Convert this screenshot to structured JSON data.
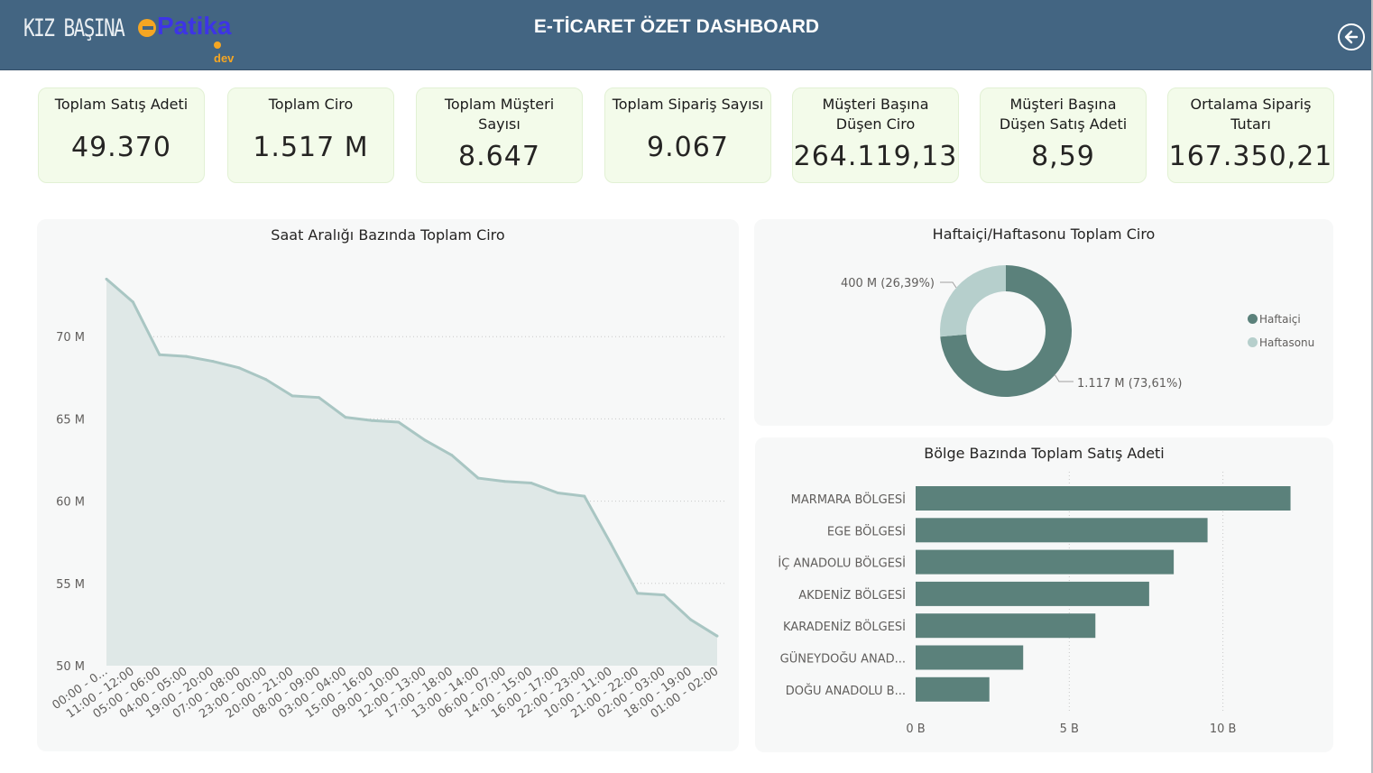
{
  "header": {
    "brand_kiz": "KIZ BAŞINA",
    "brand_patika": "Patika",
    "brand_dev": "dev",
    "title": "E-TİCARET ÖZET DASHBOARD",
    "back_icon": "back-arrow-icon"
  },
  "kpis": [
    {
      "label": "Toplam Satış Adeti",
      "value": "49.370"
    },
    {
      "label": "Toplam Ciro",
      "value": "1.517 M"
    },
    {
      "label": "Toplam Müşteri Sayısı",
      "value": "8.647"
    },
    {
      "label": "Toplam Sipariş Sayısı",
      "value": "9.067"
    },
    {
      "label": "Müşteri Başına Düşen Ciro",
      "value": "264.119,13"
    },
    {
      "label": "Müşteri Başına Düşen Satış Adeti",
      "value": "8,59"
    },
    {
      "label": "Ortalama Sipariş Tutarı",
      "value": "167.350,21"
    }
  ],
  "colors": {
    "header": "#436582",
    "card_bg": "#f3fbea",
    "area_fill": "#dfe8e7",
    "area_line": "#a9c6c3",
    "weekday": "#5b817b",
    "weekend": "#b6cfcc",
    "bar": "#5b817b"
  },
  "chart_data": [
    {
      "type": "area",
      "title": "Saat Aralığı Bazında Toplam Ciro",
      "ylim": [
        50,
        75
      ],
      "yticks": [
        "50 M",
        "55 M",
        "60 M",
        "65 M",
        "70 M"
      ],
      "ytick_values": [
        50,
        55,
        60,
        65,
        70
      ],
      "grid": true,
      "categories": [
        "00:00 - 0...",
        "11:00 - 12:00",
        "05:00 - 06:00",
        "04:00 - 05:00",
        "19:00 - 20:00",
        "07:00 - 08:00",
        "23:00 - 00:00",
        "20:00 - 21:00",
        "08:00 - 09:00",
        "03:00 - 04:00",
        "15:00 - 16:00",
        "09:00 - 10:00",
        "12:00 - 13:00",
        "17:00 - 18:00",
        "13:00 - 14:00",
        "06:00 - 07:00",
        "14:00 - 15:00",
        "16:00 - 17:00",
        "22:00 - 23:00",
        "10:00 - 11:00",
        "21:00 - 22:00",
        "02:00 - 03:00",
        "18:00 - 19:00",
        "01:00 - 02:00"
      ],
      "values": [
        73.5,
        72.1,
        68.9,
        68.8,
        68.5,
        68.1,
        67.4,
        66.4,
        66.3,
        65.1,
        64.9,
        64.8,
        63.7,
        62.8,
        61.4,
        61.2,
        61.1,
        60.5,
        60.3,
        57.4,
        54.4,
        54.3,
        52.8,
        51.8
      ]
    },
    {
      "type": "pie",
      "title": "Haftaiçi/Haftasonu Toplam Ciro",
      "donut": true,
      "labels": [
        "Haftaiçi",
        "Haftasonu"
      ],
      "values": [
        1117,
        400
      ],
      "percents": [
        73.61,
        26.39
      ],
      "data_labels": [
        "1.117 M (73,61%)",
        "400 M (26,39%)"
      ],
      "legend_position": "right"
    },
    {
      "type": "bar",
      "orientation": "horizontal",
      "title": "Bölge Bazında Toplam Satış Adeti",
      "categories": [
        "MARMARA BÖLGESİ",
        "EGE BÖLGESİ",
        "İÇ ANADOLU BÖLGESİ",
        "AKDENİZ BÖLGESİ",
        "KARADENİZ BÖLGESİ",
        "GÜNEYDOĞU ANAD...",
        "DOĞU ANADOLU B..."
      ],
      "values": [
        12.2,
        9.5,
        8.4,
        7.6,
        5.85,
        3.5,
        2.4
      ],
      "xlim": [
        0,
        12.8
      ],
      "xticks": [
        "0 B",
        "5 B",
        "10 B"
      ],
      "xtick_values": [
        0,
        5,
        10
      ],
      "grid": true
    }
  ]
}
